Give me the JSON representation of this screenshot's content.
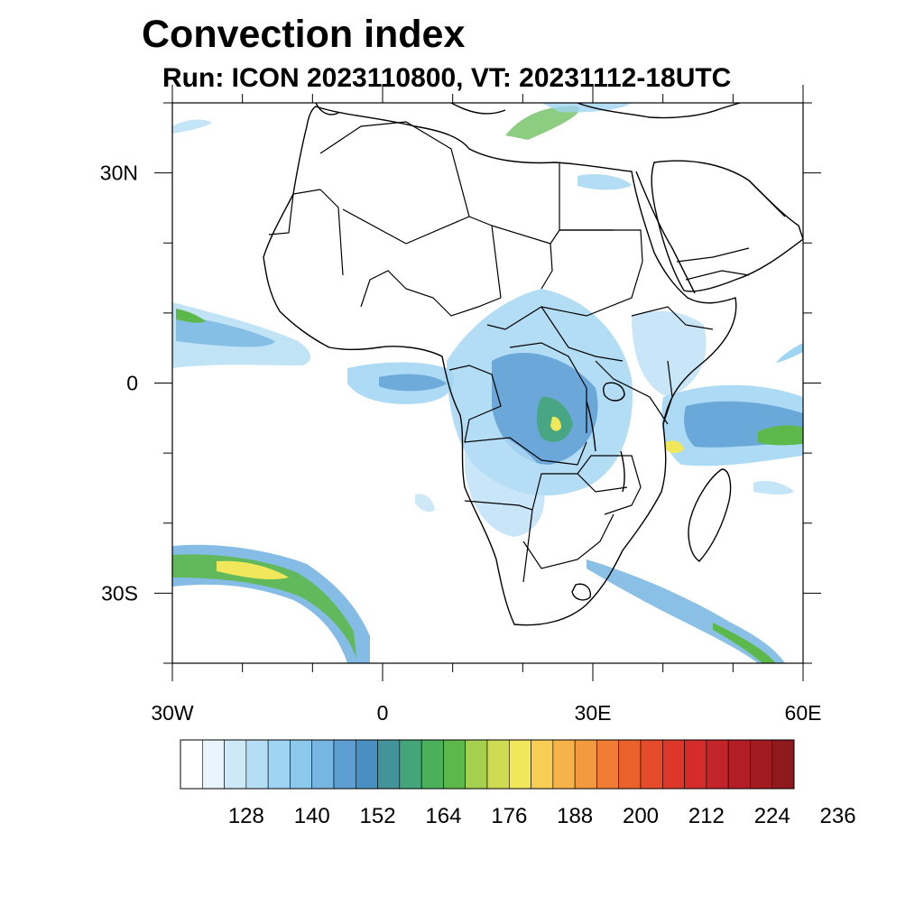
{
  "title": "Convection index",
  "subtitle": "Run: ICON 2023110800,  VT: 20231112-18UTC",
  "map": {
    "lon_range": [
      -30,
      60
    ],
    "lat_range": [
      -40,
      40
    ],
    "lat_ticks": [
      {
        "value": 30,
        "label": "30N"
      },
      {
        "value": 0,
        "label": "0"
      },
      {
        "value": -30,
        "label": "30S"
      }
    ],
    "lon_ticks": [
      {
        "value": -30,
        "label": "30W"
      },
      {
        "value": 0,
        "label": "0"
      },
      {
        "value": 30,
        "label": "30E"
      },
      {
        "value": 60,
        "label": "60E"
      }
    ]
  },
  "colorbar": {
    "colors": [
      "#ffffff",
      "#e9f5fc",
      "#cde9f8",
      "#b5def5",
      "#9fd4f2",
      "#8cc8ec",
      "#77b5e2",
      "#5e9fd3",
      "#4a8fc2",
      "#43949a",
      "#45a57a",
      "#4caf5a",
      "#5db84c",
      "#a5cf4f",
      "#cfdc53",
      "#f0e75a",
      "#f8cd55",
      "#f7b24a",
      "#f49a3e",
      "#f07d33",
      "#ea612c",
      "#e54a2a",
      "#dd3729",
      "#d32c2a",
      "#c3232a",
      "#b31d25",
      "#a11b21",
      "#8e1a1d"
    ],
    "labels": [
      "128",
      "140",
      "152",
      "164",
      "176",
      "188",
      "200",
      "212",
      "224",
      "236"
    ]
  }
}
